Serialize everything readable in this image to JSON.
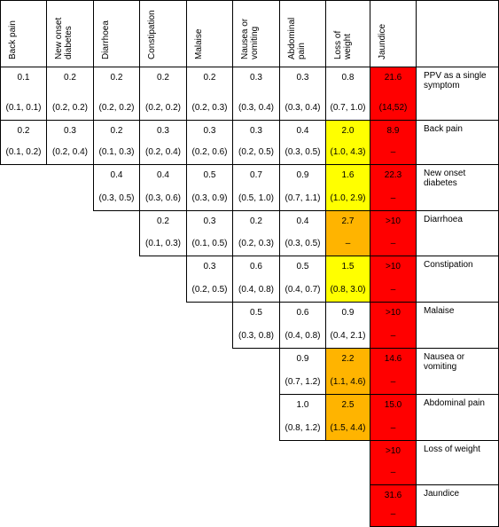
{
  "table": {
    "columns": [
      "Back pain",
      "New onset diabetes",
      "Diarrhoea",
      "Constipation",
      "Malaise",
      "Nausea or vomiting",
      "Abdominal pain",
      "Loss of weight",
      "Jaundice"
    ],
    "rows": [
      {
        "label": "PPV as a single symptom",
        "cells": [
          {
            "value": "0.1",
            "ci": "(0.1, 0.1)",
            "fill": "#ffffff"
          },
          {
            "value": "0.2",
            "ci": "(0.2, 0.2)",
            "fill": "#ffffff"
          },
          {
            "value": "0.2",
            "ci": "(0.2, 0.2)",
            "fill": "#ffffff"
          },
          {
            "value": "0.2",
            "ci": "(0.2, 0.2)",
            "fill": "#ffffff"
          },
          {
            "value": "0.2",
            "ci": "(0.2, 0.3)",
            "fill": "#ffffff"
          },
          {
            "value": "0.3",
            "ci": "(0.3, 0.4)",
            "fill": "#ffffff"
          },
          {
            "value": "0.3",
            "ci": "(0.3, 0.4)",
            "fill": "#ffffff"
          },
          {
            "value": "0.8",
            "ci": "(0.7, 1.0)",
            "fill": "#ffffff"
          },
          {
            "value": "21.6",
            "ci": "(14,52)",
            "fill": "#ff0000"
          }
        ]
      },
      {
        "label": "Back pain",
        "cells": [
          {
            "value": "0.2",
            "ci": "(0.1, 0.2)",
            "fill": "#ffffff"
          },
          {
            "value": "0.3",
            "ci": "(0.2, 0.4)",
            "fill": "#ffffff"
          },
          {
            "value": "0.2",
            "ci": "(0.1, 0.3)",
            "fill": "#ffffff"
          },
          {
            "value": "0.3",
            "ci": "(0.2, 0.4)",
            "fill": "#ffffff"
          },
          {
            "value": "0.3",
            "ci": "(0.2, 0.6)",
            "fill": "#ffffff"
          },
          {
            "value": "0.3",
            "ci": "(0.2, 0.5)",
            "fill": "#ffffff"
          },
          {
            "value": "0.4",
            "ci": "(0.3, 0.5)",
            "fill": "#ffffff"
          },
          {
            "value": "2.0",
            "ci": "(1.0, 4.3)",
            "fill": "#ffff00"
          },
          {
            "value": "8.9",
            "ci": "–",
            "fill": "#ff0000"
          }
        ]
      },
      {
        "label": "New onset diabetes",
        "cells": [
          null,
          null,
          {
            "value": "0.4",
            "ci": "(0.3, 0.5)",
            "fill": "#ffffff"
          },
          {
            "value": "0.4",
            "ci": "(0.3, 0.6)",
            "fill": "#ffffff"
          },
          {
            "value": "0.5",
            "ci": "(0.3, 0.9)",
            "fill": "#ffffff"
          },
          {
            "value": "0.7",
            "ci": "(0.5, 1.0)",
            "fill": "#ffffff"
          },
          {
            "value": "0.9",
            "ci": "(0.7, 1.1)",
            "fill": "#ffffff"
          },
          {
            "value": "1.6",
            "ci": "(1.0, 2.9)",
            "fill": "#ffff00"
          },
          {
            "value": "22.3",
            "ci": "–",
            "fill": "#ff0000"
          }
        ]
      },
      {
        "label": "Diarrhoea",
        "cells": [
          null,
          null,
          null,
          {
            "value": "0.2",
            "ci": "(0.1, 0.3)",
            "fill": "#ffffff"
          },
          {
            "value": "0.3",
            "ci": "(0.1, 0.5)",
            "fill": "#ffffff"
          },
          {
            "value": "0.2",
            "ci": "(0.2, 0.3)",
            "fill": "#ffffff"
          },
          {
            "value": "0.4",
            "ci": "(0.3, 0.5)",
            "fill": "#ffffff"
          },
          {
            "value": "2.7",
            "ci": "–",
            "fill": "#ffb400"
          },
          {
            "value": ">10",
            "ci": "–",
            "fill": "#ff0000"
          }
        ]
      },
      {
        "label": "Constipation",
        "cells": [
          null,
          null,
          null,
          null,
          {
            "value": "0.3",
            "ci": "(0.2, 0.5)",
            "fill": "#ffffff"
          },
          {
            "value": "0.6",
            "ci": "(0.4, 0.8)",
            "fill": "#ffffff"
          },
          {
            "value": "0.5",
            "ci": "(0.4, 0.7)",
            "fill": "#ffffff"
          },
          {
            "value": "1.5",
            "ci": "(0.8, 3.0)",
            "fill": "#ffff00"
          },
          {
            "value": ">10",
            "ci": "–",
            "fill": "#ff0000"
          }
        ]
      },
      {
        "label": "Malaise",
        "cells": [
          null,
          null,
          null,
          null,
          null,
          {
            "value": "0.5",
            "ci": "(0.3, 0.8)",
            "fill": "#ffffff"
          },
          {
            "value": "0.6",
            "ci": "(0.4, 0.8)",
            "fill": "#ffffff"
          },
          {
            "value": "0.9",
            "ci": "(0.4, 2.1)",
            "fill": "#ffffff"
          },
          {
            "value": ">10",
            "ci": "–",
            "fill": "#ff0000"
          }
        ]
      },
      {
        "label": "Nausea or vomiting",
        "cells": [
          null,
          null,
          null,
          null,
          null,
          null,
          {
            "value": "0.9",
            "ci": "(0.7, 1.2)",
            "fill": "#ffffff"
          },
          {
            "value": "2.2",
            "ci": "(1.1, 4.6)",
            "fill": "#ffb400"
          },
          {
            "value": "14.6",
            "ci": "–",
            "fill": "#ff0000"
          }
        ]
      },
      {
        "label": "Abdominal pain",
        "cells": [
          null,
          null,
          null,
          null,
          null,
          null,
          {
            "value": "1.0",
            "ci": "(0.8, 1.2)",
            "fill": "#ffffff"
          },
          {
            "value": "2.5",
            "ci": "(1.5, 4.4)",
            "fill": "#ffb400"
          },
          {
            "value": "15.0",
            "ci": "–",
            "fill": "#ff0000"
          }
        ]
      },
      {
        "label": "Loss of weight",
        "cells": [
          null,
          null,
          null,
          null,
          null,
          null,
          null,
          null,
          {
            "value": ">10",
            "ci": "–",
            "fill": "#ff0000"
          }
        ]
      },
      {
        "label": "Jaundice",
        "cells": [
          null,
          null,
          null,
          null,
          null,
          null,
          null,
          null,
          {
            "value": "31.6",
            "ci": "–",
            "fill": "#ff0000"
          }
        ]
      }
    ]
  }
}
